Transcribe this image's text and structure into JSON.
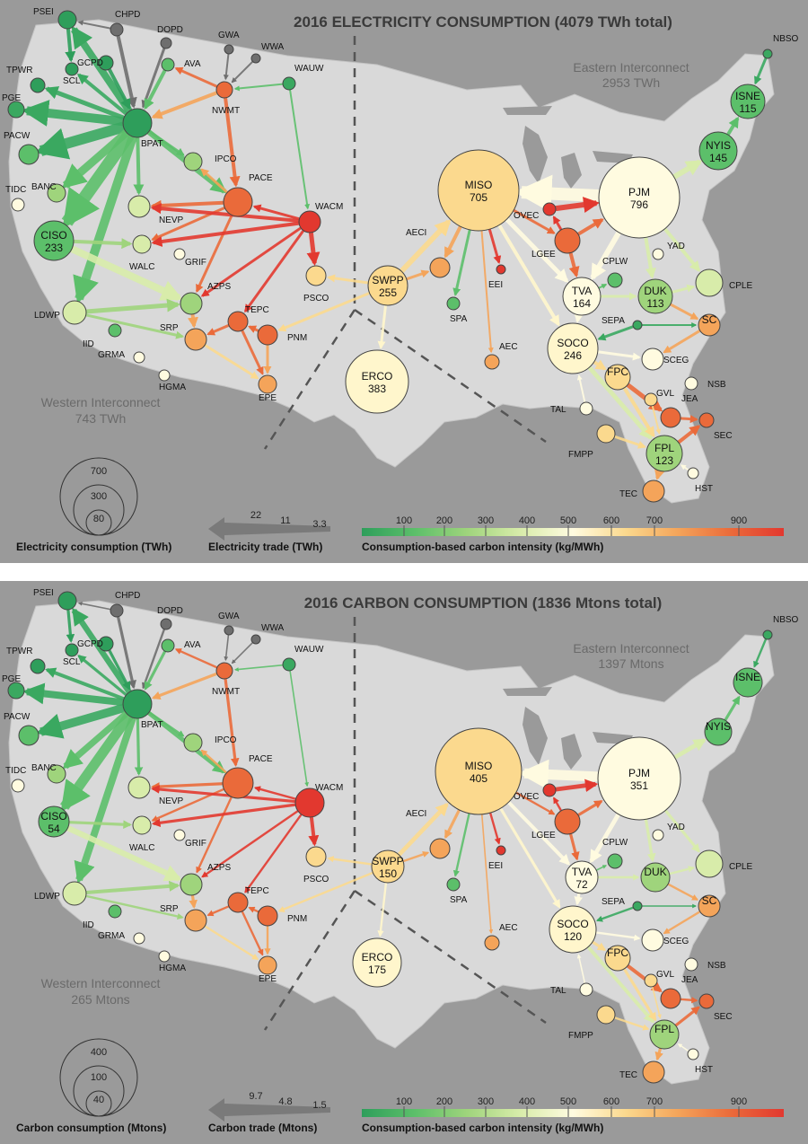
{
  "colors": {
    "background": "#9a9a9a",
    "land": "#d9d9d9",
    "divider": "#555555",
    "trade_arrow_gray": "#7a7a7a"
  },
  "scale_colors": [
    "#2e9e5b",
    "#5cbf6a",
    "#9fd47c",
    "#d8ecaa",
    "#fffbe0",
    "#fbd98e",
    "#f4a45a",
    "#ea6a3a",
    "#e2382f"
  ],
  "scale_ticks": [
    "100",
    "200",
    "300",
    "400",
    "500",
    "600",
    "700",
    "900"
  ],
  "labels": {
    "PSEI": "PSEI",
    "CHPD": "CHPD",
    "DOPD": "DOPD",
    "GWA": "GWA",
    "WWA": "WWA",
    "WAUW": "WAUW",
    "NBSO": "NBSO",
    "TPWR": "TPWR",
    "GCPD": "GCPD",
    "AVA": "AVA",
    "SCL": "SCL",
    "PGE": "PGE",
    "NWMT": "NWMT",
    "PACW": "PACW",
    "BPAT": "BPAT",
    "IPCO": "IPCO",
    "BANC": "BANC",
    "PACE": "PACE",
    "TIDC": "TIDC",
    "NEVP": "NEVP",
    "WACM": "WACM",
    "CISO": "CISO",
    "GRIF": "GRIF",
    "WALC": "WALC",
    "AECI": "AECI",
    "SWPP": "SWPP",
    "AZPS": "AZPS",
    "PSCO": "PSCO",
    "LDWP": "LDWP",
    "TEPC": "TEPC",
    "EEI": "EEI",
    "SPA": "SPA",
    "IID": "IID",
    "SRP": "SRP",
    "PNM": "PNM",
    "GRMA": "GRMA",
    "HGMA": "HGMA",
    "EPE": "EPE",
    "ERCO": "ERCO",
    "MISO": "MISO",
    "OVEC": "OVEC",
    "LGEE": "LGEE",
    "PJM": "PJM",
    "YAD": "YAD",
    "CPLW": "CPLW",
    "TVA": "TVA",
    "DUK": "DUK",
    "CPLE": "CPLE",
    "SEPA": "SEPA",
    "SC": "SC",
    "SOCO": "SOCO",
    "AEC": "AEC",
    "SCEG": "SCEG",
    "NSB": "NSB",
    "FPC": "FPC",
    "GVL": "GVL",
    "JEA": "JEA",
    "TAL": "TAL",
    "SEC": "SEC",
    "FMPP": "FMPP",
    "FPL": "FPL",
    "TEC": "TEC",
    "HST": "HST",
    "ISNE": "ISNE",
    "NYIS": "NYIS"
  },
  "panels": [
    {
      "id": "electricity",
      "title": "2016 ELECTRICITY CONSUMPTION (4079 TWh total)",
      "eastern_title": "Eastern Interconnect",
      "eastern_value": "2953 TWh",
      "western_title": "Western Interconnect",
      "western_value": "743 TWh",
      "size_legend_values": [
        "700",
        "300",
        "80"
      ],
      "size_legend_title": "Electricity consumption (TWh)",
      "trade_values": [
        "22",
        "11",
        "3.3"
      ],
      "trade_title": "Electricity trade (TWh)",
      "color_title": "Consumption-based carbon intensity (kg/MWh)",
      "inside_values": {
        "CISO": "233",
        "SWPP": "255",
        "ERCO": "383",
        "MISO": "705",
        "PJM": "796",
        "TVA": "164",
        "DUK": "113",
        "SOCO": "246",
        "FPL": "123",
        "ISNE": "115",
        "NYIS": "145"
      },
      "node_colors": {
        "PSEI": "#2e9e5b",
        "CHPD": "#6e6e6e",
        "DOPD": "#6e6e6e",
        "GWA": "#6e6e6e",
        "WWA": "#6e6e6e",
        "WAUW": "#3aa860",
        "NBSO": "#3aa860",
        "TPWR": "#2e9e5b",
        "GCPD": "#2e9e5b",
        "AVA": "#5cbf6a",
        "SCL": "#2e9e5b",
        "PGE": "#3aa860",
        "NWMT": "#ea6a3a",
        "PACW": "#5cbf6a",
        "BPAT": "#2e9e5b",
        "IPCO": "#9fd47c",
        "BANC": "#9fd47c",
        "PACE": "#ea6a3a",
        "TIDC": "#fffbe0",
        "NEVP": "#d8ecaa",
        "WACM": "#e2382f",
        "CISO": "#5cbf6a",
        "GRIF": "#fffbe0",
        "WALC": "#d8ecaa",
        "AECI": "#f4a45a",
        "SWPP": "#fbd98e",
        "AZPS": "#9fd47c",
        "PSCO": "#fbd98e",
        "LDWP": "#d8ecaa",
        "TEPC": "#ea6a3a",
        "EEI": "#e2382f",
        "SPA": "#5cbf6a",
        "IID": "#5cbf6a",
        "SRP": "#f4a45a",
        "PNM": "#ea6a3a",
        "GRMA": "#fffbe0",
        "HGMA": "#fffbe0",
        "EPE": "#f4a45a",
        "ERCO": "#fff6cc",
        "MISO": "#fbd98e",
        "OVEC": "#e2382f",
        "LGEE": "#ea6a3a",
        "PJM": "#fffbe0",
        "YAD": "#fffbe0",
        "CPLW": "#5cbf6a",
        "TVA": "#fffbe0",
        "DUK": "#9fd47c",
        "CPLE": "#d8ecaa",
        "SEPA": "#3aa860",
        "SC": "#f4a45a",
        "SOCO": "#fff6cc",
        "AEC": "#f4a45a",
        "SCEG": "#fffbe0",
        "NSB": "#fffbe0",
        "FPC": "#fbd98e",
        "GVL": "#fbd98e",
        "JEA": "#ea6a3a",
        "TAL": "#fffbe0",
        "SEC": "#ea6a3a",
        "FMPP": "#fbd98e",
        "FPL": "#9fd47c",
        "TEC": "#f4a45a",
        "HST": "#fffbe0",
        "ISNE": "#5cbf6a",
        "NYIS": "#5cbf6a"
      }
    },
    {
      "id": "carbon",
      "title": "2016 CARBON CONSUMPTION (1836 Mtons total)",
      "eastern_title": "Eastern Interconnect",
      "eastern_value": "1397 Mtons",
      "western_title": "Western Interconnect",
      "western_value": "265 Mtons",
      "size_legend_values": [
        "400",
        "100",
        "40"
      ],
      "size_legend_title": "Carbon consumption (Mtons)",
      "trade_values": [
        "9.7",
        "4.8",
        "1.5"
      ],
      "trade_title": "Carbon trade (Mtons)",
      "color_title": "Consumption-based carbon intensity (kg/MWh)",
      "inside_values": {
        "CISO": "54",
        "SWPP": "150",
        "ERCO": "175",
        "MISO": "405",
        "PJM": "351",
        "TVA": "72",
        "SOCO": "120"
      },
      "node_colors": {
        "PSEI": "#2e9e5b",
        "CHPD": "#6e6e6e",
        "DOPD": "#6e6e6e",
        "GWA": "#6e6e6e",
        "WWA": "#6e6e6e",
        "WAUW": "#3aa860",
        "NBSO": "#3aa860",
        "TPWR": "#2e9e5b",
        "GCPD": "#2e9e5b",
        "AVA": "#5cbf6a",
        "SCL": "#2e9e5b",
        "PGE": "#3aa860",
        "NWMT": "#ea6a3a",
        "PACW": "#5cbf6a",
        "BPAT": "#2e9e5b",
        "IPCO": "#9fd47c",
        "BANC": "#9fd47c",
        "PACE": "#ea6a3a",
        "TIDC": "#fffbe0",
        "NEVP": "#d8ecaa",
        "WACM": "#e2382f",
        "CISO": "#5cbf6a",
        "GRIF": "#fffbe0",
        "WALC": "#d8ecaa",
        "AECI": "#f4a45a",
        "SWPP": "#fbd98e",
        "AZPS": "#9fd47c",
        "PSCO": "#fbd98e",
        "LDWP": "#d8ecaa",
        "TEPC": "#ea6a3a",
        "EEI": "#e2382f",
        "SPA": "#5cbf6a",
        "IID": "#5cbf6a",
        "SRP": "#f4a45a",
        "PNM": "#ea6a3a",
        "GRMA": "#fffbe0",
        "HGMA": "#fffbe0",
        "EPE": "#f4a45a",
        "ERCO": "#fff6cc",
        "MISO": "#fbd98e",
        "OVEC": "#e2382f",
        "LGEE": "#ea6a3a",
        "PJM": "#fffbe0",
        "YAD": "#fffbe0",
        "CPLW": "#5cbf6a",
        "TVA": "#fffbe0",
        "DUK": "#9fd47c",
        "CPLE": "#d8ecaa",
        "SEPA": "#3aa860",
        "SC": "#f4a45a",
        "SOCO": "#fff6cc",
        "AEC": "#f4a45a",
        "SCEG": "#fffbe0",
        "NSB": "#fffbe0",
        "FPC": "#fbd98e",
        "GVL": "#fbd98e",
        "JEA": "#ea6a3a",
        "TAL": "#fffbe0",
        "SEC": "#ea6a3a",
        "FMPP": "#fbd98e",
        "FPL": "#9fd47c",
        "TEC": "#f4a45a",
        "HST": "#fffbe0",
        "ISNE": "#5cbf6a",
        "NYIS": "#5cbf6a"
      }
    }
  ]
}
